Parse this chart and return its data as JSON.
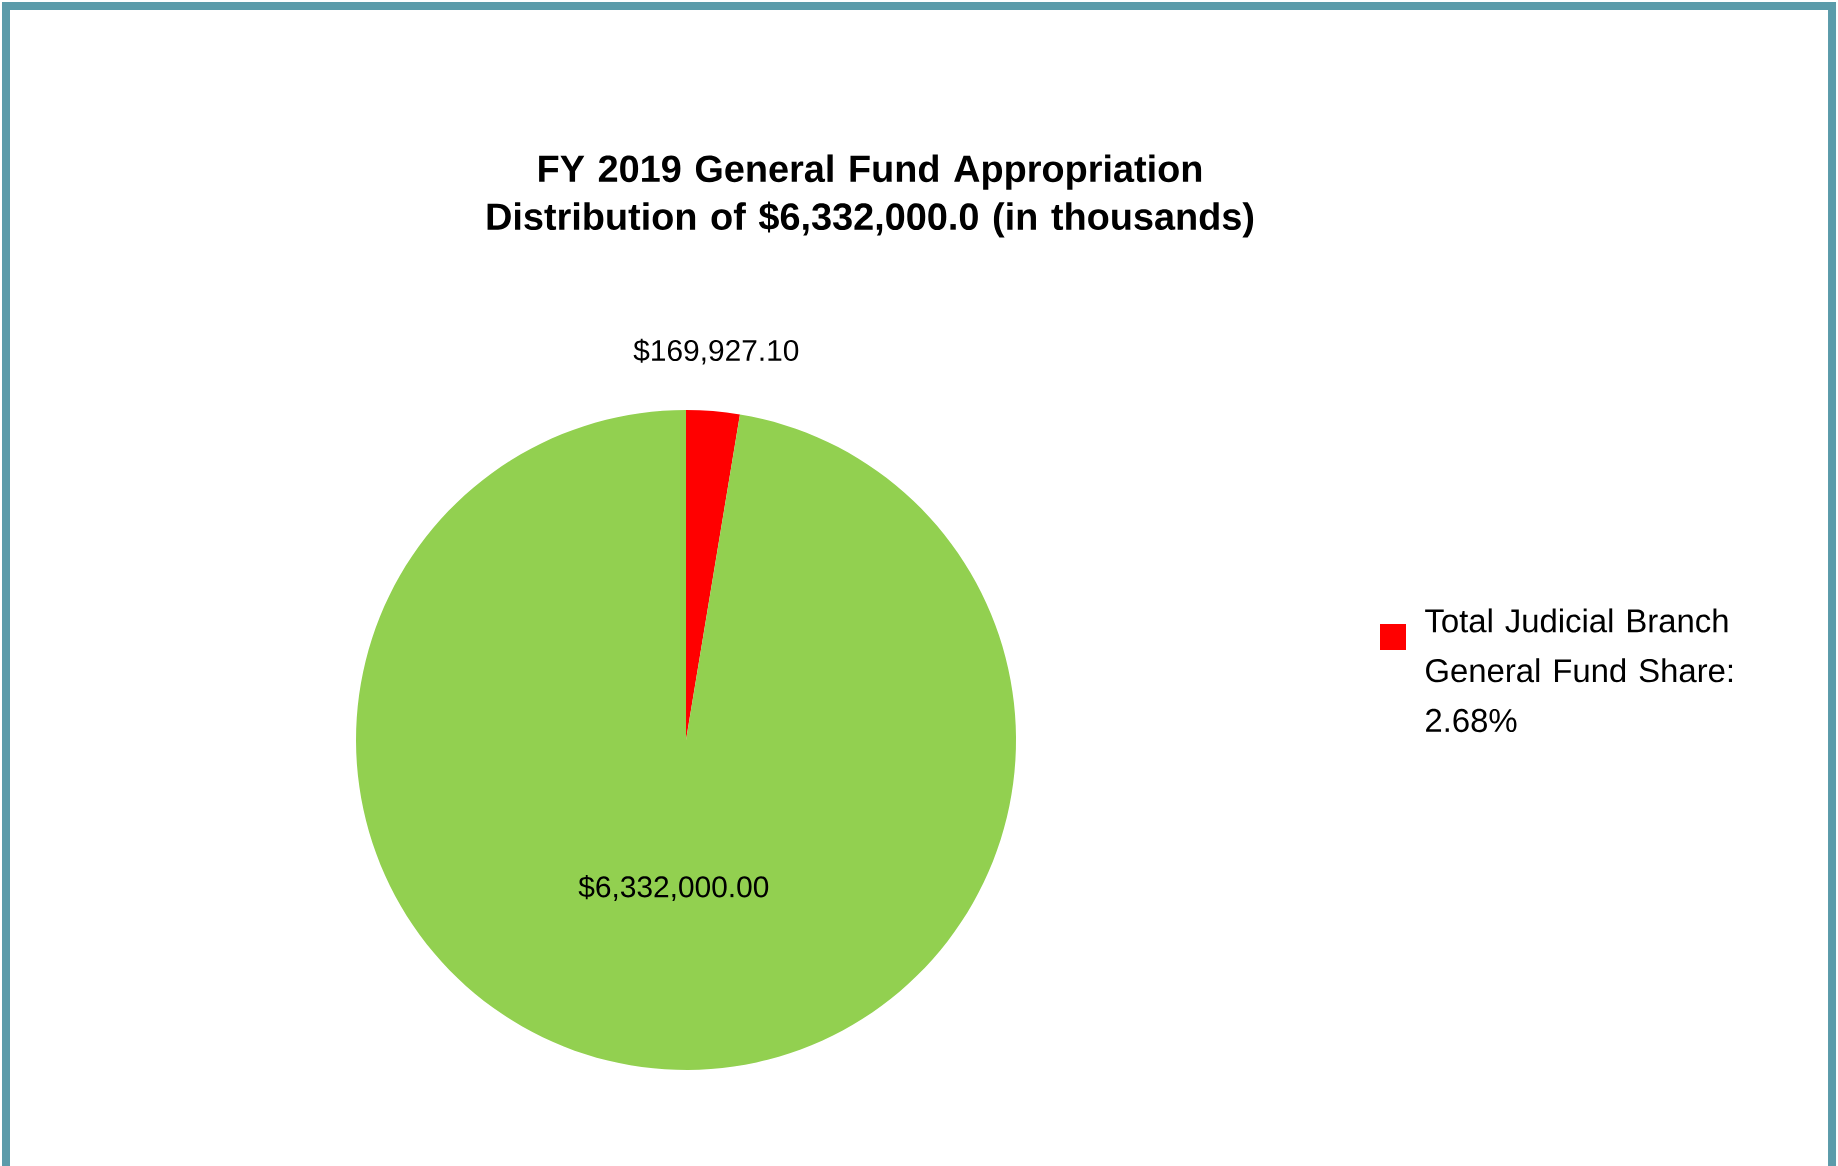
{
  "chart_data": {
    "type": "pie",
    "title": "FY 2019 General Fund Appropriation Distribution of $6,332,000.0 (in thousands)",
    "categories": [
      "Total Judicial Branch General Fund Share: 2.68%",
      null
    ],
    "values": [
      169927.1,
      6332000.0
    ],
    "colors": [
      "#ff0000",
      "#92d050"
    ],
    "value_labels": [
      "$169,927.10",
      "$6,332,000.00"
    ],
    "legend": "right"
  }
}
